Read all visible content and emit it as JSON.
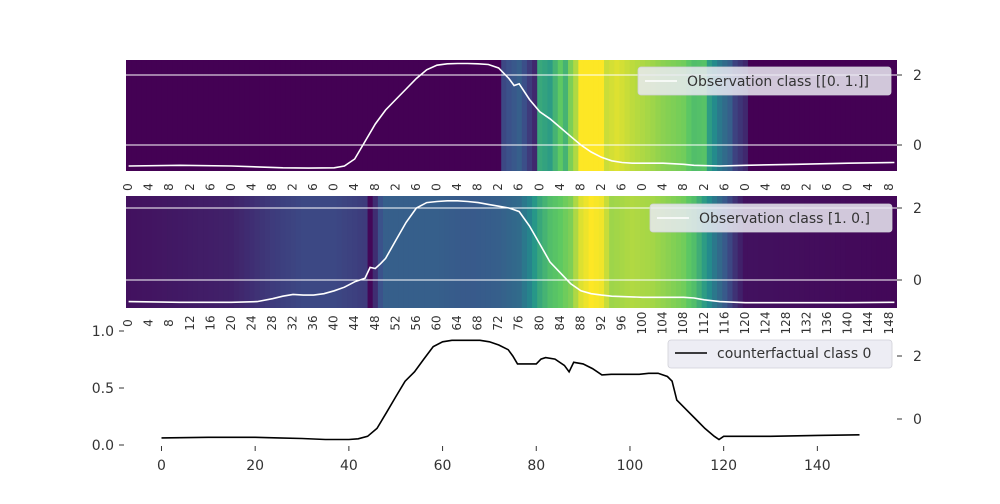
{
  "chart_data": [
    {
      "type": "heatmap",
      "legend": {
        "label": "Observation class [[0. 1.]]",
        "placement": "top-right"
      },
      "right_axis": {
        "ticks": [
          0,
          2
        ]
      },
      "x_tick_labels": [
        "0",
        "4",
        "8",
        "2",
        "6",
        "0",
        "4",
        "8",
        "2",
        "6",
        "0",
        "4",
        "8",
        "2",
        "6",
        "0",
        "4",
        "8",
        "2",
        "6",
        "0",
        "4",
        "8",
        "2",
        "6",
        "0",
        "4",
        "8",
        "2",
        "6",
        "0",
        "4",
        "8",
        "2",
        "6",
        "0",
        "4",
        "8"
      ],
      "heat_profile": [
        [
          0,
          0
        ],
        [
          72,
          0
        ],
        [
          73,
          0.22
        ],
        [
          76,
          0.3
        ],
        [
          79,
          0.12
        ],
        [
          80,
          0.6
        ],
        [
          82,
          0.55
        ],
        [
          84,
          0.75
        ],
        [
          85,
          0.65
        ],
        [
          86,
          0.8
        ],
        [
          87,
          0.88
        ],
        [
          88,
          1
        ],
        [
          92,
          1
        ],
        [
          93,
          0.92
        ],
        [
          95,
          0.95
        ],
        [
          98,
          0.9
        ],
        [
          102,
          0.85
        ],
        [
          104,
          0.82
        ],
        [
          108,
          0.78
        ],
        [
          110,
          0.7
        ],
        [
          112,
          0.72
        ],
        [
          113,
          0.55
        ],
        [
          115,
          0.4
        ],
        [
          117,
          0.3
        ],
        [
          118,
          0.2
        ],
        [
          120,
          0.12
        ],
        [
          121,
          0
        ],
        [
          149,
          0
        ]
      ],
      "series": [
        {
          "x": [
            0,
            10,
            20,
            30,
            35,
            40,
            42,
            44,
            46,
            48,
            50,
            52,
            54,
            56,
            58,
            60,
            62,
            64,
            66,
            68,
            70,
            72,
            74,
            75,
            76,
            78,
            80,
            82,
            84,
            86,
            88,
            90,
            92,
            94,
            96,
            98,
            100,
            104,
            108,
            110,
            115,
            120,
            130,
            140,
            149
          ],
          "y": [
            -0.6,
            -0.58,
            -0.6,
            -0.65,
            -0.66,
            -0.65,
            -0.6,
            -0.4,
            0.1,
            0.6,
            1.0,
            1.3,
            1.6,
            1.9,
            2.15,
            2.28,
            2.32,
            2.33,
            2.33,
            2.32,
            2.3,
            2.2,
            1.9,
            1.7,
            1.75,
            1.3,
            0.95,
            0.75,
            0.5,
            0.25,
            0.0,
            -0.2,
            -0.35,
            -0.45,
            -0.5,
            -0.52,
            -0.52,
            -0.52,
            -0.55,
            -0.58,
            -0.6,
            -0.58,
            -0.55,
            -0.52,
            -0.5
          ]
        }
      ]
    },
    {
      "type": "heatmap",
      "legend": {
        "label": "Observation class [1. 0.]",
        "placement": "top-right"
      },
      "right_axis": {
        "ticks": [
          0,
          2
        ]
      },
      "x_tick_labels": [
        "0",
        "4",
        "8",
        "12",
        "16",
        "20",
        "24",
        "28",
        "32",
        "36",
        "40",
        "44",
        "48",
        "52",
        "56",
        "60",
        "64",
        "68",
        "72",
        "76",
        "80",
        "84",
        "88",
        "92",
        "96",
        "100",
        "104",
        "108",
        "112",
        "116",
        "120",
        "124",
        "128",
        "132",
        "136",
        "140",
        "144",
        "148"
      ],
      "heat_profile": [
        [
          0,
          0.05
        ],
        [
          20,
          0.1
        ],
        [
          28,
          0.18
        ],
        [
          34,
          0.22
        ],
        [
          40,
          0.22
        ],
        [
          46,
          0.18
        ],
        [
          47,
          0.02
        ],
        [
          49,
          0.25
        ],
        [
          50,
          0.3
        ],
        [
          56,
          0.3
        ],
        [
          60,
          0.3
        ],
        [
          66,
          0.28
        ],
        [
          72,
          0.3
        ],
        [
          76,
          0.35
        ],
        [
          78,
          0.45
        ],
        [
          80,
          0.6
        ],
        [
          82,
          0.7
        ],
        [
          84,
          0.75
        ],
        [
          86,
          0.8
        ],
        [
          88,
          0.95
        ],
        [
          90,
          1
        ],
        [
          92,
          0.98
        ],
        [
          94,
          0.85
        ],
        [
          98,
          0.88
        ],
        [
          102,
          0.86
        ],
        [
          105,
          0.82
        ],
        [
          108,
          0.78
        ],
        [
          110,
          0.7
        ],
        [
          112,
          0.55
        ],
        [
          114,
          0.4
        ],
        [
          116,
          0.28
        ],
        [
          118,
          0.15
        ],
        [
          120,
          0.05
        ],
        [
          149,
          0.02
        ]
      ],
      "series": [
        {
          "x": [
            0,
            10,
            20,
            25,
            28,
            30,
            32,
            34,
            36,
            38,
            40,
            42,
            44,
            46,
            47,
            48,
            49,
            50,
            52,
            54,
            56,
            58,
            60,
            62,
            64,
            66,
            68,
            70,
            72,
            74,
            75,
            76,
            78,
            80,
            82,
            84,
            86,
            88,
            90,
            92,
            94,
            96,
            98,
            100,
            104,
            108,
            110,
            112,
            115,
            120,
            130,
            140,
            149
          ],
          "y": [
            -0.6,
            -0.62,
            -0.62,
            -0.6,
            -0.52,
            -0.45,
            -0.4,
            -0.42,
            -0.42,
            -0.38,
            -0.3,
            -0.2,
            -0.05,
            0.05,
            0.35,
            0.32,
            0.45,
            0.6,
            1.1,
            1.6,
            2.0,
            2.15,
            2.18,
            2.2,
            2.2,
            2.18,
            2.15,
            2.1,
            2.05,
            2.0,
            1.95,
            1.9,
            1.5,
            1.0,
            0.5,
            0.2,
            -0.1,
            -0.3,
            -0.38,
            -0.42,
            -0.45,
            -0.46,
            -0.47,
            -0.48,
            -0.48,
            -0.48,
            -0.5,
            -0.55,
            -0.6,
            -0.63,
            -0.63,
            -0.63,
            -0.62
          ]
        }
      ]
    },
    {
      "type": "line",
      "legend": {
        "label": "counterfactual class 0",
        "placement": "top-right"
      },
      "left_axis": {
        "ticks": [
          "0.0",
          "0.5",
          "1.0"
        ],
        "ylim": [
          0,
          1
        ]
      },
      "right_axis": {
        "ticks": [
          0,
          2
        ]
      },
      "x_ticks": [
        0,
        20,
        40,
        60,
        80,
        100,
        120,
        140
      ],
      "xlim": [
        -8,
        157
      ],
      "series": [
        {
          "x": [
            0,
            10,
            20,
            25,
            30,
            35,
            40,
            42,
            44,
            46,
            48,
            50,
            52,
            54,
            56,
            58,
            60,
            62,
            64,
            66,
            68,
            70,
            72,
            74,
            75,
            76,
            78,
            80,
            81,
            82,
            84,
            86,
            87,
            88,
            90,
            92,
            94,
            96,
            98,
            100,
            102,
            104,
            106,
            108,
            109,
            110,
            112,
            114,
            116,
            118,
            119,
            120,
            130,
            140,
            149
          ],
          "y": [
            -0.6,
            -0.58,
            -0.58,
            -0.6,
            -0.62,
            -0.65,
            -0.65,
            -0.63,
            -0.55,
            -0.3,
            0.2,
            0.7,
            1.2,
            1.5,
            1.9,
            2.3,
            2.45,
            2.5,
            2.5,
            2.5,
            2.5,
            2.45,
            2.35,
            2.2,
            2.0,
            1.75,
            1.75,
            1.75,
            1.9,
            1.95,
            1.9,
            1.7,
            1.5,
            1.8,
            1.75,
            1.6,
            1.4,
            1.42,
            1.42,
            1.42,
            1.42,
            1.45,
            1.45,
            1.35,
            1.2,
            0.6,
            0.3,
            0.0,
            -0.3,
            -0.55,
            -0.65,
            -0.55,
            -0.55,
            -0.52,
            -0.5
          ]
        }
      ]
    }
  ]
}
